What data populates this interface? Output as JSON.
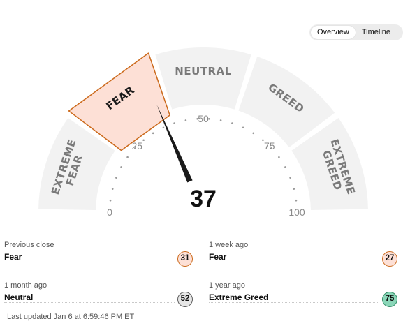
{
  "toggle": {
    "options": [
      "Overview",
      "Timeline"
    ],
    "selected": "Overview"
  },
  "gauge": {
    "value": 37,
    "value_text": "37",
    "min": 0,
    "max": 100,
    "ticks": [
      "0",
      "25",
      "50",
      "75",
      "100"
    ],
    "active_segment": "FEAR",
    "segments": [
      {
        "lines": [
          "EXTREME",
          "FEAR"
        ]
      },
      {
        "lines": [
          "FEAR"
        ]
      },
      {
        "lines": [
          "NEUTRAL"
        ]
      },
      {
        "lines": [
          "GREED"
        ]
      },
      {
        "lines": [
          "EXTREME",
          "GREED"
        ]
      }
    ],
    "colors": {
      "segment": "#f2f2f2",
      "active_fill": "#fde0d6",
      "active_stroke": "#cc6a1c",
      "needle": "#1a1a1a",
      "dots": "#9a9a9a"
    }
  },
  "stats": [
    {
      "caption": "Previous close",
      "rating": "Fear",
      "value": "31",
      "badge_bg": "#fde0d6",
      "badge_border": "#cc6a1c"
    },
    {
      "caption": "1 week ago",
      "rating": "Fear",
      "value": "27",
      "badge_bg": "#fde0d6",
      "badge_border": "#cc6a1c"
    },
    {
      "caption": "1 month ago",
      "rating": "Neutral",
      "value": "52",
      "badge_bg": "#e6e6e6",
      "badge_border": "#5a5a5a"
    },
    {
      "caption": "1 year ago",
      "rating": "Extreme Greed",
      "value": "75",
      "badge_bg": "#8ad6b8",
      "badge_border": "#2f8a64"
    }
  ],
  "updated": "Last updated Jan 6 at 6:59:46 PM ET"
}
